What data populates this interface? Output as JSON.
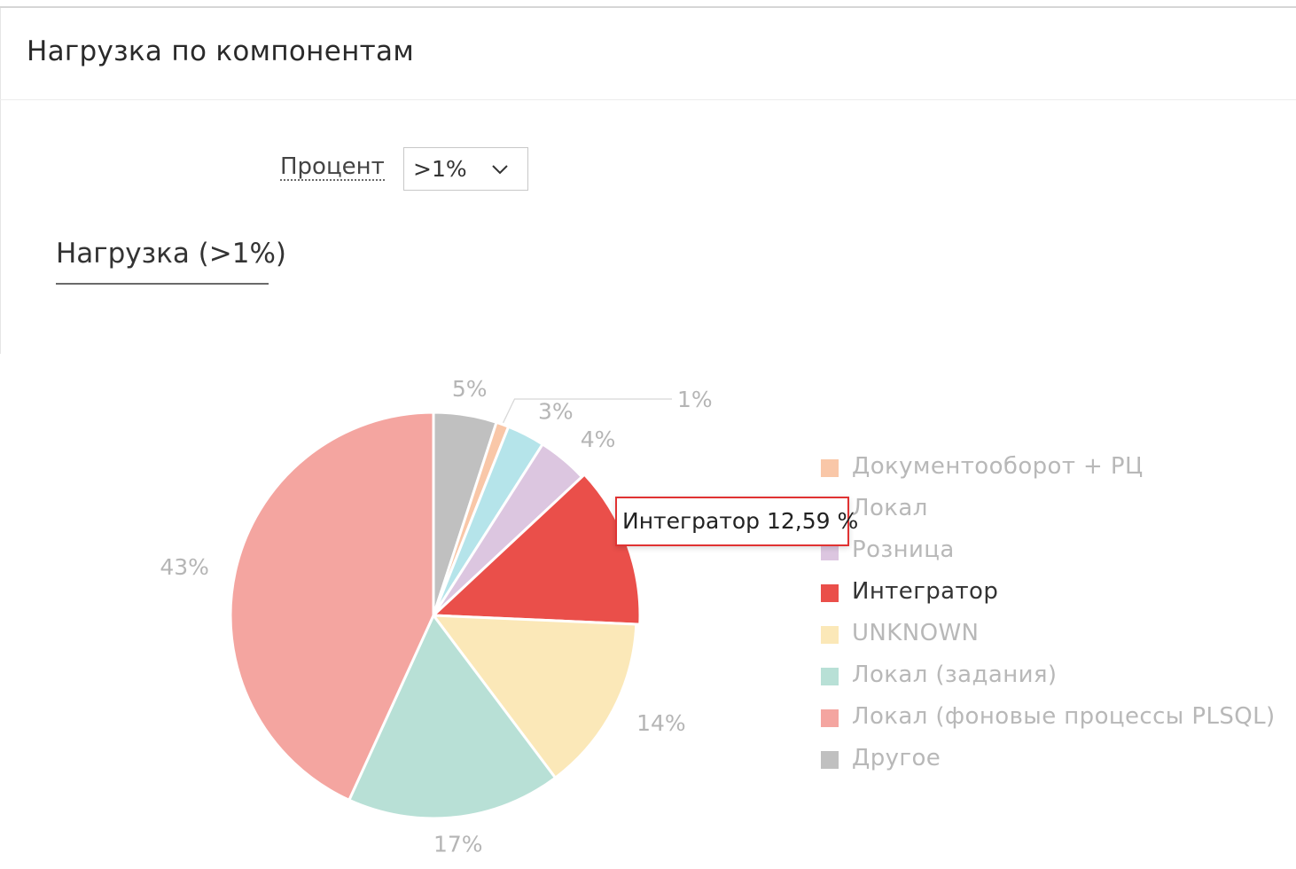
{
  "header": {
    "title": "Нагрузка по компонентам"
  },
  "filter": {
    "label": "Процент",
    "selected": ">1%"
  },
  "chart_tab": {
    "label": "Нагрузка (>1%)"
  },
  "tooltip": {
    "series": "Интегратор",
    "value": "12,59 %"
  },
  "legend": [
    {
      "label": "Документооборот + РЦ",
      "color": "#f9c7a8",
      "active": false
    },
    {
      "label": "Локал",
      "color": "#b5e4ea",
      "active": false
    },
    {
      "label": "Розница",
      "color": "#dcc6e0",
      "active": false
    },
    {
      "label": "Интегратор",
      "color": "#ea4f4a",
      "active": true
    },
    {
      "label": "UNKNOWN",
      "color": "#fbe8b8",
      "active": false
    },
    {
      "label": "Локал (задания)",
      "color": "#b8e0d6",
      "active": false
    },
    {
      "label": "Локал (фоновые процессы PLSQL)",
      "color": "#f4a5a0",
      "active": false
    },
    {
      "label": "Другое",
      "color": "#c0c0c0",
      "active": false
    }
  ],
  "chart_data": {
    "type": "pie",
    "title": "Нагрузка (>1%)",
    "slices": [
      {
        "name": "Другое",
        "value": 5,
        "label": "5%",
        "color": "#c0c0c0"
      },
      {
        "name": "Документооборот + РЦ",
        "value": 1,
        "label": "1%",
        "color": "#f9c7a8"
      },
      {
        "name": "Локал",
        "value": 3,
        "label": "3%",
        "color": "#b5e4ea"
      },
      {
        "name": "Розница",
        "value": 4,
        "label": "4%",
        "color": "#dcc6e0"
      },
      {
        "name": "Интегратор",
        "value": 12.59,
        "label": "13%",
        "color": "#ea4f4a"
      },
      {
        "name": "UNKNOWN",
        "value": 14,
        "label": "14%",
        "color": "#fbe8b8"
      },
      {
        "name": "Локал (задания)",
        "value": 17,
        "label": "17%",
        "color": "#b8e0d6"
      },
      {
        "name": "Локал (фоновые процессы PLSQL)",
        "value": 43,
        "label": "43%",
        "color": "#f4a5a0"
      }
    ],
    "highlighted": "Интегратор",
    "legend_position": "right"
  }
}
